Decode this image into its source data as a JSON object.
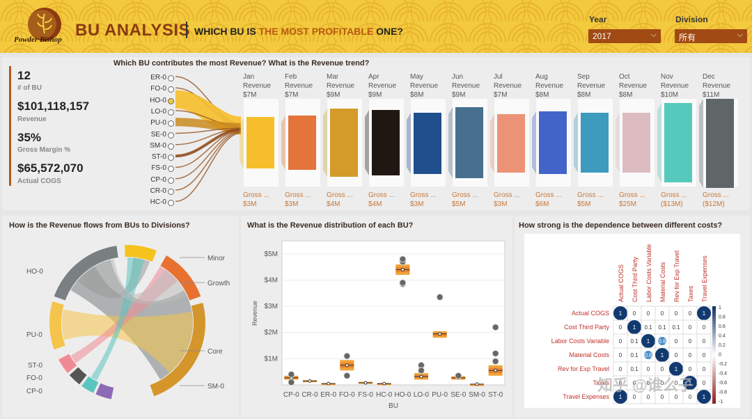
{
  "header": {
    "logo_text": "Powder Bishop",
    "title": "BU ANALYSIS",
    "subtitle_pre": "WHICH BU IS",
    "subtitle_hl": "THE MOST PROFITABLE",
    "subtitle_post": "ONE?",
    "year_label": "Year",
    "year_value": "2017",
    "division_label": "Division",
    "division_value": "所有",
    "icon": "chevron-down-icon"
  },
  "kpis": [
    {
      "value": "12",
      "label": "# of BU"
    },
    {
      "value": "$101,118,157",
      "label": "Revenue"
    },
    {
      "value": "35%",
      "label": "Gross Margin %"
    },
    {
      "value": "$65,572,070",
      "label": "Actual COGS"
    }
  ],
  "revenue_panel": {
    "title": "Which BU contributes the most Revenue? What is the Revenue trend?",
    "bus": [
      "ER-0",
      "FO-0",
      "HO-0",
      "LO-0",
      "PU-0",
      "SE-0",
      "SM-0",
      "ST-0",
      "FS-0",
      "CP-0",
      "CR-0",
      "HC-0"
    ],
    "months": [
      {
        "name": "Jan",
        "rev_label": "Revenue",
        "rev": "$7M",
        "gm_label": "Gross ...",
        "gm": "$3M",
        "color": "#f5be2a"
      },
      {
        "name": "Feb",
        "rev_label": "Revenue",
        "rev": "$7M",
        "gm_label": "Gross ...",
        "gm": "$3M",
        "color": "#e5743a"
      },
      {
        "name": "Mar",
        "rev_label": "Revenue",
        "rev": "$9M",
        "gm_label": "Gross ...",
        "gm": "$4M",
        "color": "#d49a2a"
      },
      {
        "name": "Apr",
        "rev_label": "Revenue",
        "rev": "$9M",
        "gm_label": "Gross ...",
        "gm": "$4M",
        "color": "#1f1712"
      },
      {
        "name": "May",
        "rev_label": "Revenue",
        "rev": "$8M",
        "gm_label": "Gross ...",
        "gm": "$3M",
        "color": "#1f4f8c"
      },
      {
        "name": "Jun",
        "rev_label": "Revenue",
        "rev": "$9M",
        "gm_label": "Gross ...",
        "gm": "$5M",
        "color": "#47708f"
      },
      {
        "name": "Jul",
        "rev_label": "Revenue",
        "rev": "$7M",
        "gm_label": "Gross ...",
        "gm": "$3M",
        "color": "#ec9377"
      },
      {
        "name": "Aug",
        "rev_label": "Revenue",
        "rev": "$8M",
        "gm_label": "Gross ...",
        "gm": "$6M",
        "color": "#4264c9"
      },
      {
        "name": "Sep",
        "rev_label": "Revenue",
        "rev": "$8M",
        "gm_label": "Gross ...",
        "gm": "$5M",
        "color": "#3d9bbd"
      },
      {
        "name": "Oct",
        "rev_label": "Revenue",
        "rev": "$8M",
        "gm_label": "Gross ...",
        "gm": "$25M",
        "color": "#dcbcc1"
      },
      {
        "name": "Nov",
        "rev_label": "Revenue",
        "rev": "$10M",
        "gm_label": "Gross ...",
        "gm": "($13M)",
        "color": "#55c9bb"
      },
      {
        "name": "Dec",
        "rev_label": "Revenue",
        "rev": "$11M",
        "gm_label": "Gross ...",
        "gm": "($12M)",
        "color": "#5e6668"
      }
    ]
  },
  "chord_panel": {
    "title": "How is the Revenue flows from BUs to Divisions?",
    "left_labels": [
      "HO-0",
      "PU-0",
      "ST-0",
      "FO-0",
      "CP-0"
    ],
    "right_labels": [
      "Minor",
      "Growth",
      "Core",
      "SM-0"
    ]
  },
  "box_panel": {
    "title": "What is the Revenue distribution of each BU?",
    "chart_data": {
      "type": "box",
      "xlabel": "BU",
      "ylabel": "Revenue",
      "yticks": [
        "$1M",
        "$2M",
        "$3M",
        "$4M",
        "$5M"
      ],
      "ylim": [
        0,
        5.5
      ],
      "categories": [
        "CP-0",
        "CR-0",
        "ER-0",
        "FO-0",
        "FS-0",
        "HC-0",
        "HO-0",
        "LO-0",
        "PU-0",
        "SE-0",
        "SM-0",
        "ST-0"
      ],
      "q1": [
        0.2,
        0.12,
        0.03,
        0.55,
        0.05,
        0.03,
        4.2,
        0.2,
        1.8,
        0.2,
        0.02,
        0.35
      ],
      "median": [
        0.27,
        0.15,
        0.05,
        0.75,
        0.08,
        0.05,
        4.4,
        0.32,
        1.95,
        0.27,
        0.03,
        0.55
      ],
      "q3": [
        0.35,
        0.18,
        0.07,
        0.95,
        0.12,
        0.07,
        4.6,
        0.45,
        2.05,
        0.33,
        0.04,
        0.75
      ],
      "outliers": [
        [
          0.4,
          0.1
        ],
        [],
        [],
        [
          1.1,
          0.35
        ],
        [],
        [],
        [
          3.85,
          3.9,
          4.7,
          4.8
        ],
        [
          0.75,
          0.55
        ],
        [
          3.35
        ],
        [
          0.35
        ],
        [],
        [
          2.2,
          1.2,
          0.9
        ]
      ]
    }
  },
  "corr_panel": {
    "title": "How strong is the dependence between different costs?",
    "chart_data": {
      "type": "heatmap",
      "columns": [
        "Actual COGS",
        "Cost Third Party",
        "Labor Costs Variable",
        "Material Costs",
        "Rev for Exp Travel",
        "Taxes",
        "Travel Expenses"
      ],
      "rows": [
        "Actual COGS",
        "Cost Third Party",
        "Labor Costs Variable",
        "Material Costs",
        "Rev for Exp Travel",
        "Taxes",
        "Travel Expenses"
      ],
      "values": [
        [
          "1",
          "0",
          "0",
          "0",
          "0",
          "0",
          "1"
        ],
        [
          "0",
          "1",
          "0.1",
          "0.1",
          "0.1",
          "0",
          "0"
        ],
        [
          "0",
          "0.1",
          "1",
          "0.6",
          "0",
          "0",
          "0"
        ],
        [
          "0",
          "0.1",
          "0.6",
          "1",
          "0",
          "0",
          "0"
        ],
        [
          "0",
          "0.1",
          "0",
          "0",
          "1",
          "0",
          "0"
        ],
        [
          "0",
          "0",
          "0",
          "0",
          "0",
          "1",
          "0"
        ],
        [
          "1",
          "0",
          "0",
          "0",
          "0",
          "0",
          "1"
        ]
      ],
      "scale_labels": [
        "1",
        "0.8",
        "0.6",
        "0.4",
        "0.2",
        "0",
        "-0.2",
        "-0.4",
        "-0.6",
        "-0.8",
        "-1"
      ]
    }
  },
  "watermark": "知乎 @谁么子"
}
